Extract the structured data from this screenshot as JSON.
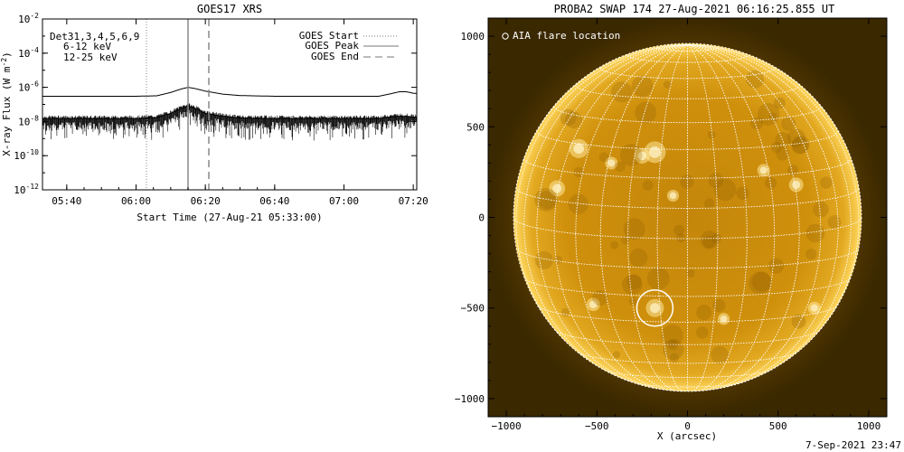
{
  "chart_data": [
    {
      "type": "line",
      "title": "GOES17 XRS",
      "xlabel": "Start Time (27-Aug-21 05:33:00)",
      "ylabel": "X-ray Flux (W m",
      "ylabel_exp": "-2",
      "ylabel_close": ")",
      "y_scale": "log",
      "ylim": [
        1e-12,
        0.01
      ],
      "xlim": [
        "05:33",
        "07:21"
      ],
      "x_ticks": [
        "05:40",
        "06:00",
        "06:20",
        "06:40",
        "07:00",
        "07:20"
      ],
      "y_ticks": [
        {
          "value": 0.01,
          "base": "10",
          "exp": "-2"
        },
        {
          "value": 0.0001,
          "base": "10",
          "exp": "-4"
        },
        {
          "value": 1e-06,
          "base": "10",
          "exp": "-6"
        },
        {
          "value": 1e-08,
          "base": "10",
          "exp": "-8"
        },
        {
          "value": 1e-10,
          "base": "10",
          "exp": "-10"
        },
        {
          "value": 1e-12,
          "base": "10",
          "exp": "-12"
        }
      ],
      "annotation_lines": [
        "Det31,3,4,5,6,9",
        "6-12 keV",
        "12-25 keV"
      ],
      "annotation_colors": [
        "#000000",
        "#cc00cc",
        "#00cc00"
      ],
      "legend": [
        "GOES Start",
        "GOES Peak",
        "GOES End"
      ],
      "legend_placement": "top-right",
      "markers": {
        "start": "06:03",
        "peak": "06:15",
        "end": "06:21"
      },
      "series": [
        {
          "x": [
            "05:33",
            "05:45",
            "06:00",
            "06:06",
            "06:10",
            "06:13",
            "06:15",
            "06:17",
            "06:20",
            "06:25",
            "06:30",
            "06:40",
            "06:50",
            "07:00",
            "07:05",
            "07:10",
            "07:13",
            "07:16",
            "07:18",
            "07:20"
          ],
          "values": [
            3e-07,
            3e-07,
            3e-07,
            3.2e-07,
            5e-07,
            8e-07,
            1e-06,
            8.5e-07,
            6e-07,
            4e-07,
            3.3e-07,
            3e-07,
            3e-07,
            3e-07,
            3e-07,
            3e-07,
            4e-07,
            5.5e-07,
            5.5e-07,
            4.5e-07
          ]
        },
        {
          "x": [
            "05:33",
            "05:45",
            "06:00",
            "06:06",
            "06:10",
            "06:13",
            "06:15",
            "06:17",
            "06:20",
            "06:25",
            "06:30",
            "06:40",
            "06:50",
            "07:00",
            "07:05",
            "07:10",
            "07:13",
            "07:16",
            "07:18",
            "07:20"
          ],
          "values": [
            1.5e-08,
            1.5e-08,
            1.5e-08,
            1.7e-08,
            3e-08,
            6e-08,
            8e-08,
            6e-08,
            3e-08,
            2e-08,
            1.6e-08,
            1.5e-08,
            1.5e-08,
            1.5e-08,
            1.5e-08,
            1.5e-08,
            1.8e-08,
            2e-08,
            2e-08,
            1.8e-08
          ],
          "style": "noisy"
        }
      ]
    },
    {
      "type": "scatter",
      "title": "PROBA2 SWAP 174 27-Aug-2021 06:16:25.855 UT",
      "xlabel": "X (arcsec)",
      "xlim": [
        -1100,
        1100
      ],
      "ylim": [
        -1100,
        1100
      ],
      "x_ticks": [
        -1000,
        -500,
        0,
        500,
        1000
      ],
      "y_ticks": [
        -1000,
        -500,
        0,
        500,
        1000
      ],
      "legend": [
        "AIA flare location"
      ],
      "legend_placement": "top-left",
      "grid": true,
      "flare_location": {
        "x": -180,
        "y": -500
      },
      "solar_radius": 960
    }
  ],
  "footer": {
    "timestamp": "7-Sep-2021 23:47"
  },
  "colors": {
    "sun_core": "#c98a08",
    "sun_edge": "#ffd45a",
    "corona": "#6b4400",
    "grid": "#ffffff"
  }
}
